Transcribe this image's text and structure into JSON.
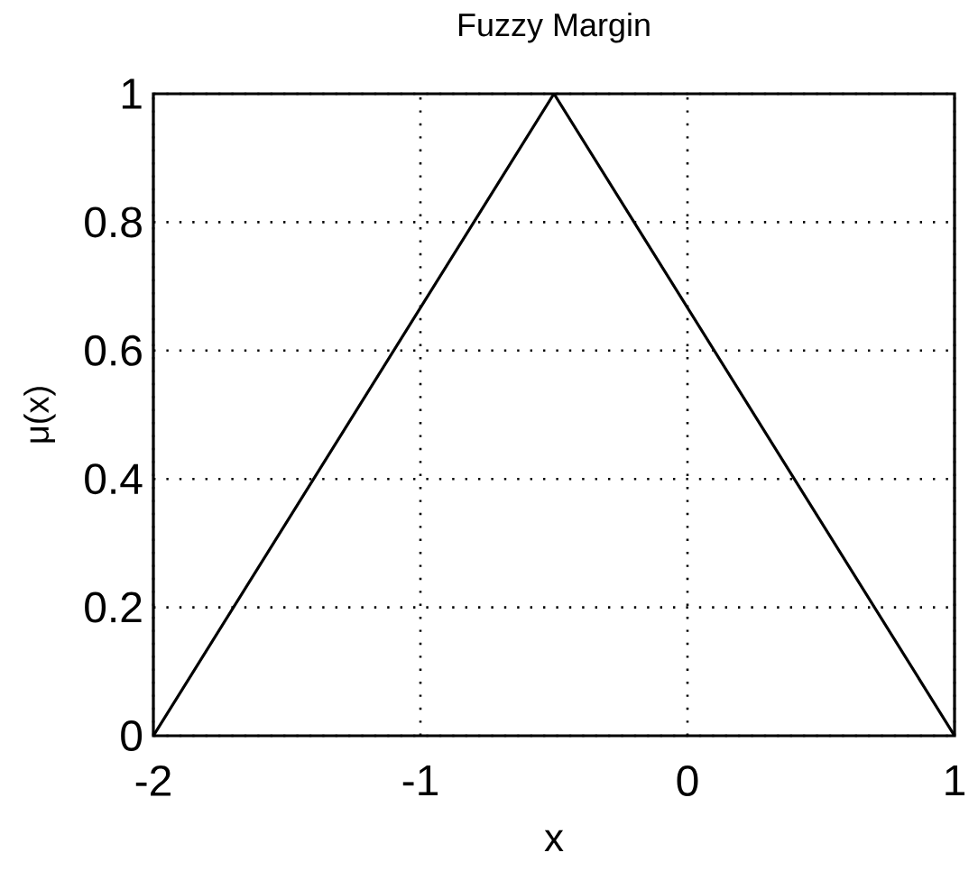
{
  "chart_data": {
    "type": "line",
    "title": "Fuzzy Margin",
    "xlabel": "x",
    "ylabel": "μ(x)",
    "x": [
      -2,
      -0.5,
      1
    ],
    "series": [
      {
        "color": "#000000",
        "values": [
          0,
          1,
          0
        ]
      }
    ],
    "xlim": [
      -2,
      1
    ],
    "ylim": [
      0,
      1
    ],
    "xticks": [
      -2,
      -1,
      0,
      1
    ],
    "yticks": [
      0,
      0.2,
      0.4,
      0.6,
      0.8,
      1
    ],
    "grid": true
  }
}
